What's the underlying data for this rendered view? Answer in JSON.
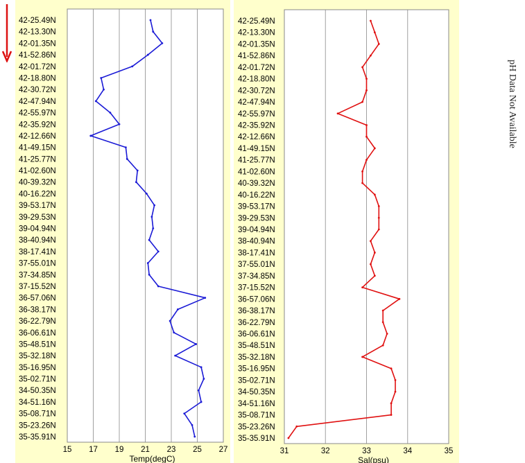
{
  "direction_arrow": {
    "icon": "arrow-down-icon",
    "color": "#dd1111"
  },
  "ph_note": "pH Data Not Available",
  "chart_data": [
    {
      "type": "line",
      "title": "",
      "xlabel": "Temp(degC)",
      "ylabel": "",
      "xlim": [
        15,
        27
      ],
      "xticks": [
        15,
        17,
        19,
        21,
        23,
        25,
        27
      ],
      "grid": "vertical",
      "color": "#1a1ad6",
      "categories": [
        "42-25.49N",
        "42-13.30N",
        "42-01.35N",
        "41-52.86N",
        "42-01.72N",
        "42-18.80N",
        "42-30.72N",
        "42-47.94N",
        "42-55.97N",
        "42-35.92N",
        "42-12.66N",
        "41-49.15N",
        "41-25.77N",
        "41-02.60N",
        "40-39.32N",
        "40-16.22N",
        "39-53.17N",
        "39-29.53N",
        "39-04.94N",
        "38-40.94N",
        "38-17.41N",
        "37-55.01N",
        "37-34.85N",
        "37-15.52N",
        "36-57.06N",
        "36-38.17N",
        "36-22.79N",
        "36-06.61N",
        "35-48.51N",
        "35-32.18N",
        "35-16.95N",
        "35-02.71N",
        "34-50.35N",
        "34-51.16N",
        "35-08.71N",
        "35-23.26N",
        "35-35.91N"
      ],
      "values": [
        21.4,
        21.6,
        22.3,
        21.2,
        20.0,
        17.6,
        17.8,
        17.2,
        18.3,
        19.0,
        16.8,
        19.5,
        19.6,
        20.4,
        20.3,
        21.1,
        21.7,
        21.5,
        21.6,
        21.3,
        22.0,
        21.2,
        21.3,
        22.0,
        25.6,
        23.5,
        22.9,
        23.2,
        24.9,
        23.3,
        25.3,
        25.5,
        25.1,
        25.3,
        24.0,
        24.6,
        24.8
      ]
    },
    {
      "type": "line",
      "title": "",
      "xlabel": "Sal(psu)",
      "ylabel": "",
      "xlim": [
        31,
        35
      ],
      "xticks": [
        31,
        32,
        33,
        34,
        35
      ],
      "grid": "vertical",
      "color": "#e01010",
      "categories": [
        "42-25.49N",
        "42-13.30N",
        "42-01.35N",
        "41-52.86N",
        "42-01.72N",
        "42-18.80N",
        "42-30.72N",
        "42-47.94N",
        "42-55.97N",
        "42-35.92N",
        "42-12.66N",
        "41-49.15N",
        "41-25.77N",
        "41-02.60N",
        "40-39.32N",
        "40-16.22N",
        "39-53.17N",
        "39-29.53N",
        "39-04.94N",
        "38-40.94N",
        "38-17.41N",
        "37-55.01N",
        "37-34.85N",
        "37-15.52N",
        "36-57.06N",
        "36-38.17N",
        "36-22.79N",
        "36-06.61N",
        "35-48.51N",
        "35-32.18N",
        "35-16.95N",
        "35-02.71N",
        "34-50.35N",
        "34-51.16N",
        "35-08.71N",
        "35-23.26N",
        "35-35.91N"
      ],
      "values": [
        33.1,
        33.2,
        33.3,
        33.1,
        32.9,
        33.0,
        33.0,
        32.9,
        32.3,
        33.0,
        33.0,
        33.2,
        33.0,
        32.9,
        32.9,
        33.2,
        33.3,
        33.3,
        33.3,
        33.1,
        33.2,
        33.1,
        33.2,
        32.9,
        33.8,
        33.4,
        33.4,
        33.5,
        33.4,
        32.9,
        33.6,
        33.7,
        33.7,
        33.6,
        33.6,
        31.3,
        31.1
      ]
    }
  ]
}
